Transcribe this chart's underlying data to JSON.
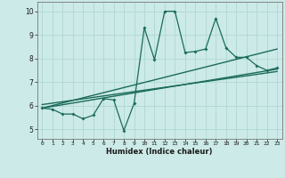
{
  "xlabel": "Humidex (Indice chaleur)",
  "bg_color": "#cceae7",
  "line_color": "#1a6b5a",
  "grid_color": "#aed8d4",
  "xlim": [
    -0.5,
    23.5
  ],
  "ylim": [
    4.6,
    10.4
  ],
  "xticks": [
    0,
    1,
    2,
    3,
    4,
    5,
    6,
    7,
    8,
    9,
    10,
    11,
    12,
    13,
    14,
    15,
    16,
    17,
    18,
    19,
    20,
    21,
    22,
    23
  ],
  "yticks": [
    5,
    6,
    7,
    8,
    9,
    10
  ],
  "data_x": [
    0,
    1,
    2,
    3,
    4,
    5,
    6,
    7,
    8,
    9,
    10,
    11,
    12,
    13,
    14,
    15,
    16,
    17,
    18,
    19,
    20,
    21,
    22,
    23
  ],
  "data_y": [
    5.9,
    5.85,
    5.65,
    5.65,
    5.45,
    5.6,
    6.3,
    6.25,
    4.95,
    6.1,
    9.3,
    7.95,
    10.0,
    10.0,
    8.25,
    8.3,
    8.4,
    9.7,
    8.45,
    8.05,
    8.05,
    7.7,
    7.5,
    7.6
  ],
  "trend_lines": [
    {
      "x0": 0,
      "y0": 5.9,
      "x1": 23,
      "y1": 8.4
    },
    {
      "x0": 0,
      "y0": 5.9,
      "x1": 23,
      "y1": 7.55
    },
    {
      "x0": 0,
      "y0": 6.05,
      "x1": 23,
      "y1": 7.45
    }
  ]
}
